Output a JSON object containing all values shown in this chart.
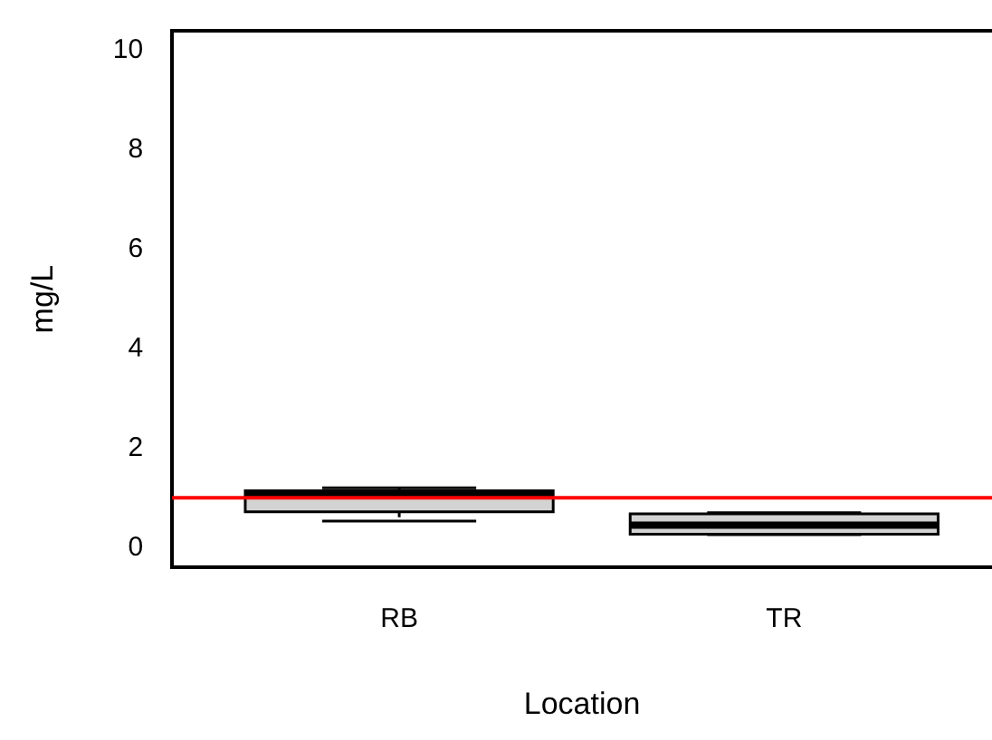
{
  "chart_data": {
    "type": "box",
    "xlabel": "Location",
    "ylabel": "mg/L",
    "categories": [
      "RB",
      "TR"
    ],
    "boxes": [
      {
        "low": 0.53,
        "q1": 0.72,
        "median": 1.08,
        "q3": 1.14,
        "high": 1.2
      },
      {
        "low": 0.26,
        "q1": 0.27,
        "median": 0.45,
        "q3": 0.68,
        "high": 0.7
      }
    ],
    "color": "#d3d3d3",
    "ylim": [
      -0.4,
      10.4
    ],
    "yticks": [
      0,
      2,
      4,
      6,
      8,
      10
    ],
    "grid": false,
    "legend": false,
    "ref_lines": [
      {
        "axis": "y",
        "value": 1,
        "color": "#ff0000"
      }
    ]
  }
}
